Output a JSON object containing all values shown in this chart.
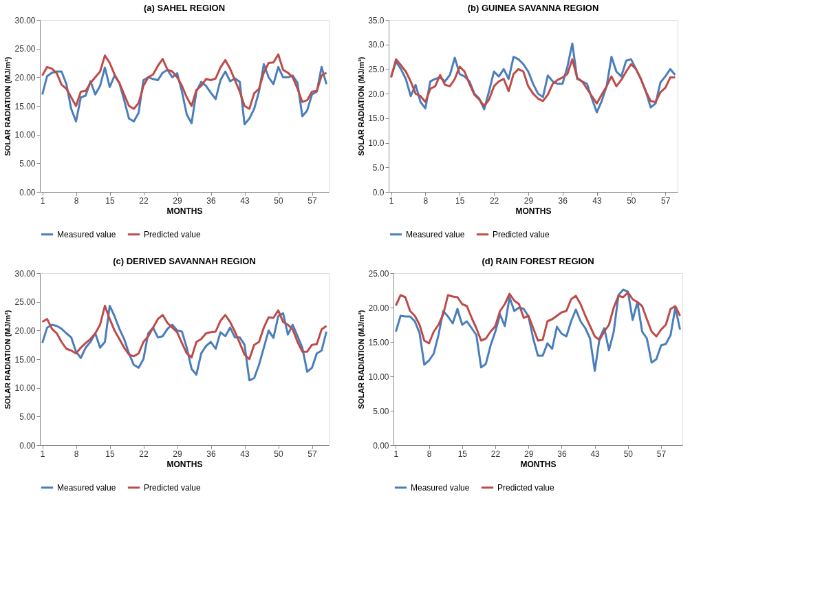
{
  "chart_data": [
    {
      "type": "line",
      "title": "(a) SAHEL REGION",
      "xlabel": "MONTHS",
      "ylabel": "SOLAR RADIATION (MJ/m²)",
      "legend": "bottom",
      "grid": false,
      "line_style": "solid",
      "marker": "none",
      "x": [
        1,
        2,
        3,
        4,
        5,
        6,
        7,
        8,
        9,
        10,
        11,
        12,
        13,
        14,
        15,
        16,
        17,
        18,
        19,
        20,
        21,
        22,
        23,
        24,
        25,
        26,
        27,
        28,
        29,
        30,
        31,
        32,
        33,
        34,
        35,
        36,
        37,
        38,
        39,
        40,
        41,
        42,
        43,
        44,
        45,
        46,
        47,
        48,
        49,
        50,
        51,
        52,
        53,
        54,
        55,
        56,
        57,
        58,
        59,
        60
      ],
      "xlim": [
        0.5,
        60.5
      ],
      "xticks": [
        1,
        8,
        15,
        22,
        29,
        36,
        43,
        50,
        57
      ],
      "ylim": [
        0,
        30
      ],
      "yticks": [
        {
          "value": 0,
          "label": "0.00"
        },
        {
          "value": 5,
          "label": "5.00"
        },
        {
          "value": 10,
          "label": "10.00"
        },
        {
          "value": 15,
          "label": "15.00"
        },
        {
          "value": 20,
          "label": "20.00"
        },
        {
          "value": 25,
          "label": "25.00"
        },
        {
          "value": 30,
          "label": "30.00"
        }
      ],
      "series": [
        {
          "name": "Measured value",
          "color": "#4a7ebb",
          "values": [
            17.0,
            20.2,
            20.8,
            21.0,
            21.0,
            18.8,
            14.5,
            12.3,
            16.5,
            16.8,
            19.3,
            17.0,
            18.5,
            21.7,
            18.3,
            20.3,
            19.0,
            16.0,
            12.8,
            12.3,
            13.8,
            19.5,
            20.0,
            19.7,
            19.5,
            20.8,
            21.3,
            20.0,
            20.7,
            17.5,
            13.5,
            12.0,
            17.5,
            19.2,
            18.5,
            17.3,
            16.2,
            19.5,
            21.0,
            19.3,
            19.8,
            19.2,
            11.8,
            12.8,
            14.5,
            17.5,
            22.3,
            20.0,
            18.8,
            21.8,
            20.0,
            20.0,
            20.3,
            19.0,
            13.2,
            14.2,
            17.0,
            17.5,
            21.8,
            18.8
          ]
        },
        {
          "name": "Predicted value",
          "color": "#be4b48",
          "values": [
            20.3,
            21.8,
            21.5,
            20.7,
            18.7,
            18.0,
            16.5,
            15.0,
            17.5,
            17.6,
            19.0,
            20.0,
            21.0,
            23.8,
            22.5,
            20.5,
            19.0,
            17.0,
            15.0,
            14.5,
            15.5,
            18.5,
            20.0,
            20.5,
            22.0,
            23.2,
            21.3,
            21.0,
            20.0,
            18.5,
            16.5,
            15.0,
            17.8,
            18.5,
            19.7,
            19.5,
            19.8,
            21.7,
            23.0,
            21.5,
            19.5,
            17.5,
            15.0,
            14.5,
            17.2,
            18.0,
            20.8,
            22.5,
            22.6,
            24.0,
            21.3,
            20.8,
            20.0,
            18.0,
            15.7,
            16.0,
            17.5,
            17.6,
            20.3,
            20.8
          ]
        }
      ]
    },
    {
      "type": "line",
      "title": "(b) GUINEA SAVANNA REGION",
      "xlabel": "MONTHS",
      "ylabel": "SOLAR RADIATION (MJ/m²)",
      "legend": "bottom",
      "grid": false,
      "line_style": "solid",
      "marker": "none",
      "x": [
        1,
        2,
        3,
        4,
        5,
        6,
        7,
        8,
        9,
        10,
        11,
        12,
        13,
        14,
        15,
        16,
        17,
        18,
        19,
        20,
        21,
        22,
        23,
        24,
        25,
        26,
        27,
        28,
        29,
        30,
        31,
        32,
        33,
        34,
        35,
        36,
        37,
        38,
        39,
        40,
        41,
        42,
        43,
        44,
        45,
        46,
        47,
        48,
        49,
        50,
        51,
        52,
        53,
        54,
        55,
        56,
        57,
        58,
        59
      ],
      "xlim": [
        0.5,
        59.5
      ],
      "xticks": [
        1,
        8,
        15,
        22,
        29,
        36,
        43,
        50,
        57
      ],
      "ylim": [
        0,
        35
      ],
      "yticks": [
        {
          "value": 0,
          "label": "0.0"
        },
        {
          "value": 5,
          "label": "5.0"
        },
        {
          "value": 10,
          "label": "10.0"
        },
        {
          "value": 15,
          "label": "15.0"
        },
        {
          "value": 20,
          "label": "20.0"
        },
        {
          "value": 25,
          "label": "25.0"
        },
        {
          "value": 30,
          "label": "30.0"
        },
        {
          "value": 35,
          "label": "35.0"
        }
      ],
      "series": [
        {
          "name": "Measured value",
          "color": "#4a7ebb",
          "values": [
            23.5,
            26.5,
            25.0,
            23.0,
            19.5,
            21.8,
            18.3,
            17.0,
            22.5,
            23.0,
            23.3,
            22.5,
            23.8,
            27.3,
            24.0,
            23.5,
            22.5,
            20.0,
            19.0,
            16.8,
            20.5,
            24.5,
            23.5,
            25.0,
            23.0,
            27.5,
            27.0,
            26.0,
            24.5,
            22.0,
            20.0,
            19.3,
            23.7,
            22.5,
            22.0,
            22.0,
            25.5,
            30.2,
            23.0,
            22.5,
            22.0,
            19.0,
            16.2,
            18.5,
            21.5,
            27.5,
            24.5,
            23.5,
            26.7,
            27.0,
            25.0,
            23.0,
            20.5,
            17.2,
            18.0,
            22.3,
            23.5,
            25.0,
            23.8
          ]
        },
        {
          "name": "Predicted value",
          "color": "#be4b48",
          "values": [
            23.3,
            27.0,
            25.8,
            24.5,
            22.5,
            20.0,
            19.5,
            18.3,
            21.0,
            21.5,
            23.8,
            21.8,
            21.5,
            23.0,
            25.5,
            24.5,
            22.0,
            19.8,
            18.8,
            17.5,
            18.8,
            21.5,
            22.5,
            23.0,
            20.5,
            24.0,
            25.0,
            24.5,
            21.5,
            20.0,
            19.0,
            18.5,
            19.8,
            22.0,
            22.8,
            23.3,
            24.0,
            27.0,
            23.2,
            22.5,
            21.0,
            19.5,
            18.0,
            19.8,
            21.5,
            23.5,
            21.5,
            22.8,
            24.5,
            26.0,
            25.0,
            23.0,
            20.5,
            18.5,
            18.3,
            20.3,
            21.2,
            23.3,
            23.3
          ]
        }
      ]
    },
    {
      "type": "line",
      "title": "(c) DERIVED SAVANNAH REGION",
      "xlabel": "MONTHS",
      "ylabel": "SOLAR RADIATION (MJ/m²)",
      "legend": "bottom",
      "grid": false,
      "line_style": "solid",
      "marker": "none",
      "x": [
        1,
        2,
        3,
        4,
        5,
        6,
        7,
        8,
        9,
        10,
        11,
        12,
        13,
        14,
        15,
        16,
        17,
        18,
        19,
        20,
        21,
        22,
        23,
        24,
        25,
        26,
        27,
        28,
        29,
        30,
        31,
        32,
        33,
        34,
        35,
        36,
        37,
        38,
        39,
        40,
        41,
        42,
        43,
        44,
        45,
        46,
        47,
        48,
        49,
        50,
        51,
        52,
        53,
        54,
        55,
        56,
        57,
        58,
        59,
        60
      ],
      "xlim": [
        0.5,
        60.5
      ],
      "xticks": [
        1,
        8,
        15,
        22,
        29,
        36,
        43,
        50,
        57
      ],
      "ylim": [
        0,
        30
      ],
      "yticks": [
        {
          "value": 0,
          "label": "0.00"
        },
        {
          "value": 5,
          "label": "5.00"
        },
        {
          "value": 10,
          "label": "10.00"
        },
        {
          "value": 15,
          "label": "15.00"
        },
        {
          "value": 20,
          "label": "20.00"
        },
        {
          "value": 25,
          "label": "25.00"
        },
        {
          "value": 30,
          "label": "30.00"
        }
      ],
      "series": [
        {
          "name": "Measured value",
          "color": "#4a7ebb",
          "values": [
            17.8,
            20.5,
            21.0,
            20.8,
            20.3,
            19.5,
            18.8,
            16.3,
            15.2,
            17.0,
            18.0,
            19.5,
            17.0,
            18.0,
            24.3,
            22.5,
            20.3,
            18.5,
            16.0,
            14.0,
            13.5,
            15.0,
            19.5,
            20.5,
            18.8,
            19.0,
            20.3,
            21.0,
            20.0,
            19.8,
            17.0,
            13.3,
            12.3,
            16.0,
            17.3,
            18.0,
            16.8,
            19.7,
            19.0,
            20.5,
            18.8,
            18.8,
            17.5,
            11.3,
            11.7,
            14.0,
            17.0,
            20.0,
            18.7,
            22.5,
            23.0,
            19.3,
            21.0,
            19.0,
            17.0,
            12.8,
            13.5,
            16.0,
            16.5,
            19.8
          ]
        },
        {
          "name": "Predicted value",
          "color": "#be4b48",
          "values": [
            21.5,
            22.0,
            20.3,
            19.5,
            18.0,
            16.8,
            16.5,
            16.0,
            17.0,
            17.8,
            18.5,
            19.5,
            21.0,
            24.3,
            22.0,
            20.0,
            18.5,
            17.0,
            15.8,
            15.5,
            16.0,
            18.0,
            19.0,
            20.5,
            22.0,
            22.7,
            21.3,
            20.5,
            19.7,
            17.8,
            16.0,
            15.3,
            18.0,
            18.5,
            19.5,
            19.7,
            19.8,
            21.7,
            22.7,
            21.5,
            19.8,
            17.8,
            15.8,
            15.0,
            17.5,
            18.0,
            20.5,
            22.3,
            22.2,
            23.5,
            21.5,
            21.0,
            20.2,
            18.0,
            16.3,
            16.3,
            17.5,
            17.6,
            20.2,
            20.8
          ]
        }
      ]
    },
    {
      "type": "line",
      "title": "(d) RAIN FOREST REGION",
      "xlabel": "MONTHS",
      "ylabel": "SOLAR RADIATION (MJ/m²)",
      "legend": "bottom",
      "grid": false,
      "line_style": "solid",
      "marker": "none",
      "x": [
        1,
        2,
        3,
        4,
        5,
        6,
        7,
        8,
        9,
        10,
        11,
        12,
        13,
        14,
        15,
        16,
        17,
        18,
        19,
        20,
        21,
        22,
        23,
        24,
        25,
        26,
        27,
        28,
        29,
        30,
        31,
        32,
        33,
        34,
        35,
        36,
        37,
        38,
        39,
        40,
        41,
        42,
        43,
        44,
        45,
        46,
        47,
        48,
        49,
        50,
        51,
        52,
        53,
        54,
        55,
        56,
        57,
        58,
        59,
        60,
        61
      ],
      "xlim": [
        0.5,
        61.5
      ],
      "xticks": [
        1,
        8,
        15,
        22,
        29,
        36,
        43,
        50,
        57
      ],
      "ylim": [
        0,
        25
      ],
      "yticks": [
        {
          "value": 0,
          "label": "0.00"
        },
        {
          "value": 5,
          "label": "5.00"
        },
        {
          "value": 10,
          "label": "10.00"
        },
        {
          "value": 15,
          "label": "15.00"
        },
        {
          "value": 20,
          "label": "20.00"
        },
        {
          "value": 25,
          "label": "25.00"
        }
      ],
      "series": [
        {
          "name": "Measured value",
          "color": "#4a7ebb",
          "values": [
            16.5,
            18.8,
            18.7,
            18.7,
            18.0,
            16.3,
            11.7,
            12.3,
            13.3,
            16.0,
            19.5,
            18.7,
            17.7,
            19.8,
            17.5,
            18.0,
            17.0,
            16.0,
            11.3,
            11.8,
            14.5,
            16.5,
            19.0,
            17.3,
            21.5,
            19.5,
            20.0,
            19.8,
            18.7,
            15.5,
            13.0,
            13.0,
            14.8,
            14.0,
            17.2,
            16.2,
            15.8,
            18.0,
            19.7,
            18.0,
            17.0,
            15.5,
            10.8,
            15.5,
            17.0,
            13.8,
            16.5,
            21.8,
            22.6,
            22.3,
            18.2,
            20.8,
            16.5,
            15.5,
            12.0,
            12.5,
            14.5,
            14.7,
            16.0,
            20.0,
            16.8
          ]
        },
        {
          "name": "Predicted value",
          "color": "#be4b48",
          "values": [
            20.3,
            21.8,
            21.5,
            19.5,
            18.8,
            17.5,
            15.2,
            14.8,
            16.5,
            17.5,
            19.0,
            21.8,
            21.6,
            21.5,
            20.5,
            20.2,
            18.5,
            17.0,
            15.2,
            15.5,
            16.5,
            17.3,
            19.5,
            20.5,
            22.0,
            21.0,
            20.5,
            18.5,
            18.8,
            17.0,
            15.2,
            15.3,
            18.0,
            18.3,
            18.8,
            19.3,
            19.5,
            21.2,
            21.7,
            20.5,
            18.8,
            17.3,
            15.8,
            15.3,
            16.5,
            17.5,
            20.0,
            21.7,
            21.5,
            22.2,
            21.2,
            20.8,
            20.2,
            18.3,
            16.5,
            15.8,
            16.8,
            17.5,
            19.8,
            20.2,
            18.8
          ]
        }
      ]
    }
  ]
}
